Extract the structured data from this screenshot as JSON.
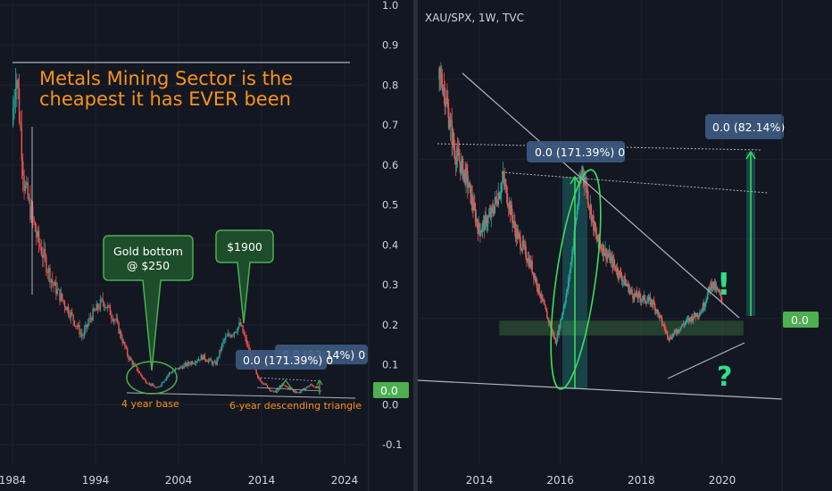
{
  "left_chart": {
    "headline_line1": "Metals Mining Sector is the",
    "headline_line2": "cheapest it has EVER been",
    "bubble_gold_line1": "Gold bottom",
    "bubble_gold_line2": "@ $250",
    "bubble_1900": "$1900",
    "label_171": "0.0 (171.39%) 0",
    "label_82": "0.0 (82.14%) 0",
    "base_note": "4 year base",
    "triangle_note": "6-year descending triangle",
    "price_tag": "0.0"
  },
  "right_chart": {
    "symbol": "XAU/SPX, 1W, TVC",
    "label_171": "0.0 (171.39%) 0",
    "label_82": "0.0 (82.14%)",
    "price_tag": "0.0",
    "exclaim": "!",
    "question": "?"
  },
  "colors": {
    "background": "#131722",
    "candle_up": "#26a69a",
    "candle_down": "#ef5350",
    "headline": "#f7931a",
    "bubble_fill": "#1e4d2b",
    "bubble_stroke": "#4caf50",
    "label_fill": "#3d5a80",
    "zone_green": "#4caf50",
    "accent_green": "#2de08a"
  },
  "chart_data": [
    {
      "type": "candlestick",
      "x_ticks": [
        "1984",
        "1994",
        "2004",
        "2014",
        "2024"
      ],
      "y_ticks": [
        "1.0",
        "0.9",
        "0.8",
        "0.7",
        "0.6",
        "0.5",
        "0.4",
        "0.3",
        "0.2",
        "0.1",
        "0.0",
        "-0.1"
      ],
      "ylim": [
        -0.12,
        1.0
      ],
      "xlim": [
        1984,
        2025
      ],
      "key_points": [
        {
          "x": 1984.0,
          "y": 0.7
        },
        {
          "x": 1984.5,
          "y": 0.85
        },
        {
          "x": 1985.5,
          "y": 0.55
        },
        {
          "x": 1987.0,
          "y": 0.42
        },
        {
          "x": 1989.0,
          "y": 0.3
        },
        {
          "x": 1991.0,
          "y": 0.23
        },
        {
          "x": 1992.5,
          "y": 0.17
        },
        {
          "x": 1993.5,
          "y": 0.22
        },
        {
          "x": 1995.0,
          "y": 0.26
        },
        {
          "x": 1996.5,
          "y": 0.21
        },
        {
          "x": 1998.0,
          "y": 0.12
        },
        {
          "x": 2000.0,
          "y": 0.06
        },
        {
          "x": 2001.5,
          "y": 0.04
        },
        {
          "x": 2003.0,
          "y": 0.08
        },
        {
          "x": 2005.0,
          "y": 0.1
        },
        {
          "x": 2007.0,
          "y": 0.12
        },
        {
          "x": 2008.5,
          "y": 0.1
        },
        {
          "x": 2009.5,
          "y": 0.16
        },
        {
          "x": 2011.5,
          "y": 0.2
        },
        {
          "x": 2012.5,
          "y": 0.14
        },
        {
          "x": 2013.5,
          "y": 0.07
        },
        {
          "x": 2015.5,
          "y": 0.03
        },
        {
          "x": 2016.5,
          "y": 0.05
        },
        {
          "x": 2018.5,
          "y": 0.03
        },
        {
          "x": 2020.0,
          "y": 0.05
        },
        {
          "x": 2021.0,
          "y": 0.04
        }
      ]
    },
    {
      "type": "candlestick",
      "title": "XAU/SPX, 1W, TVC",
      "x_ticks": [
        "2014",
        "2016",
        "2018",
        "2020"
      ],
      "xlim": [
        2012.8,
        2021.4
      ],
      "ylim": [
        -0.1,
        1.0
      ],
      "key_points": [
        {
          "x": 2013.1,
          "y": 0.8
        },
        {
          "x": 2013.4,
          "y": 0.62
        },
        {
          "x": 2013.7,
          "y": 0.55
        },
        {
          "x": 2014.0,
          "y": 0.42
        },
        {
          "x": 2014.3,
          "y": 0.46
        },
        {
          "x": 2014.6,
          "y": 0.55
        },
        {
          "x": 2014.9,
          "y": 0.42
        },
        {
          "x": 2015.3,
          "y": 0.33
        },
        {
          "x": 2015.7,
          "y": 0.2
        },
        {
          "x": 2015.9,
          "y": 0.14
        },
        {
          "x": 2016.2,
          "y": 0.28
        },
        {
          "x": 2016.55,
          "y": 0.58
        },
        {
          "x": 2016.9,
          "y": 0.4
        },
        {
          "x": 2017.3,
          "y": 0.34
        },
        {
          "x": 2017.8,
          "y": 0.26
        },
        {
          "x": 2018.3,
          "y": 0.24
        },
        {
          "x": 2018.7,
          "y": 0.15
        },
        {
          "x": 2019.1,
          "y": 0.19
        },
        {
          "x": 2019.5,
          "y": 0.22
        },
        {
          "x": 2019.75,
          "y": 0.29
        },
        {
          "x": 2020.0,
          "y": 0.25
        }
      ]
    }
  ]
}
